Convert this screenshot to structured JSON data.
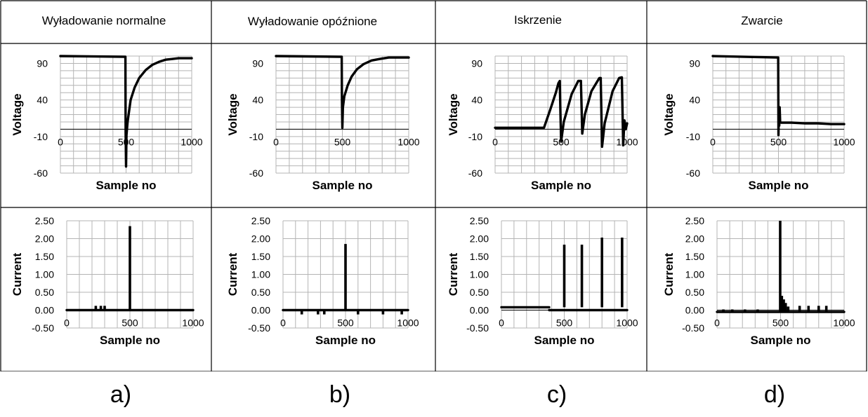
{
  "columns": [
    {
      "header": "Wyładowanie normalne",
      "sublabel": "a)",
      "voltage_chart": {
        "type": "line",
        "ylabel": "Voltage",
        "xlabel": "Sample no",
        "yticks": [
          "90",
          "40",
          "-10",
          "-60"
        ],
        "ytick_values": [
          90,
          40,
          -10,
          -60
        ],
        "xticks": [
          "0",
          "500",
          "1000"
        ],
        "xtick_values": [
          0,
          500,
          1000
        ],
        "ylim": [
          -60,
          100
        ],
        "xlim": [
          0,
          1000
        ],
        "series": [
          {
            "name": "Voltage",
            "x": [
              0,
              495,
              497,
              500,
              503,
              512,
              535,
              565,
              600,
              650,
              700,
              750,
              800,
              850,
              900,
              950,
              1000
            ],
            "y": [
              100,
              99,
              -5,
              -51,
              -8,
              10,
              40,
              57,
              70,
              81,
              88,
              92,
              95,
              96,
              97,
              97,
              97
            ]
          }
        ]
      },
      "current_chart": {
        "type": "line",
        "ylabel": "Current",
        "xlabel": "Sample no",
        "yticks": [
          "2.50",
          "2.00",
          "1.50",
          "1.00",
          "0.50",
          "0.00",
          "-0.50"
        ],
        "ytick_values": [
          2.5,
          2.0,
          1.5,
          1.0,
          0.5,
          0.0,
          -0.5
        ],
        "xticks": [
          "0",
          "500",
          "1000"
        ],
        "xtick_values": [
          0,
          500,
          1000
        ],
        "ylim": [
          -0.5,
          2.5
        ],
        "xlim": [
          0,
          1000
        ],
        "baseline": 0.0,
        "spikes": [
          {
            "x": 500,
            "y": 2.35
          },
          {
            "x": 230,
            "y": 0.12
          },
          {
            "x": 270,
            "y": 0.12
          },
          {
            "x": 300,
            "y": 0.12
          }
        ]
      }
    },
    {
      "header": "Wyładowanie opóźnione",
      "sublabel": "b)",
      "voltage_chart": {
        "type": "line",
        "ylabel": "Voltage",
        "xlabel": "Sample no",
        "yticks": [
          "90",
          "40",
          "-10",
          "-60"
        ],
        "ytick_values": [
          90,
          40,
          -10,
          -60
        ],
        "xticks": [
          "0",
          "500",
          "1000"
        ],
        "xtick_values": [
          0,
          500,
          1000
        ],
        "ylim": [
          -60,
          100
        ],
        "xlim": [
          0,
          1000
        ],
        "series": [
          {
            "name": "Voltage",
            "x": [
              0,
              495,
              497,
              500,
              504,
              515,
              540,
              570,
              610,
              660,
              720,
              780,
              850,
              920,
              1000
            ],
            "y": [
              100,
              99,
              40,
              2,
              30,
              45,
              60,
              72,
              82,
              89,
              94,
              96,
              98,
              98,
              98
            ]
          }
        ]
      },
      "current_chart": {
        "type": "line",
        "ylabel": "Current",
        "xlabel": "Sample no",
        "yticks": [
          "2.50",
          "2.00",
          "1.50",
          "1.00",
          "0.50",
          "0.00",
          "-0.50"
        ],
        "ytick_values": [
          2.5,
          2.0,
          1.5,
          1.0,
          0.5,
          0.0,
          -0.5
        ],
        "xticks": [
          "0",
          "500",
          "1000"
        ],
        "xtick_values": [
          0,
          500,
          1000
        ],
        "ylim": [
          -0.5,
          2.5
        ],
        "xlim": [
          0,
          1000
        ],
        "baseline": 0.0,
        "spikes": [
          {
            "x": 500,
            "y": 1.85
          },
          {
            "x": 150,
            "y": -0.12
          },
          {
            "x": 280,
            "y": -0.12
          },
          {
            "x": 330,
            "y": -0.12
          },
          {
            "x": 600,
            "y": -0.12
          },
          {
            "x": 800,
            "y": -0.12
          },
          {
            "x": 950,
            "y": -0.12
          }
        ]
      }
    },
    {
      "header": "Iskrzenie",
      "sublabel": "c)",
      "voltage_chart": {
        "type": "line",
        "ylabel": "Voltage",
        "xlabel": "Sample no",
        "yticks": [
          "90",
          "40",
          "-10",
          "-60"
        ],
        "ytick_values": [
          90,
          40,
          -10,
          -60
        ],
        "xticks": [
          "0",
          "500",
          "1000"
        ],
        "xtick_values": [
          0,
          500,
          1000
        ],
        "ylim": [
          -60,
          100
        ],
        "xlim": [
          0,
          1000
        ],
        "series": [
          {
            "name": "Voltage",
            "x": [
              0,
              370,
              420,
              460,
              480,
              490,
              495,
              500,
              520,
              580,
              630,
              650,
              660,
              680,
              730,
              790,
              800,
              810,
              830,
              890,
              940,
              960,
              970,
              980,
              990,
              1000
            ],
            "y": [
              2,
              2,
              28,
              50,
              63,
              66,
              20,
              -17,
              10,
              48,
              66,
              66,
              -6,
              20,
              52,
              70,
              70,
              -24,
              8,
              52,
              70,
              71,
              -22,
              12,
              0,
              8
            ]
          }
        ]
      },
      "current_chart": {
        "type": "line",
        "ylabel": "Current",
        "xlabel": "Sample no",
        "yticks": [
          "2.50",
          "2.00",
          "1.50",
          "1.00",
          "0.50",
          "0.00",
          "-0.50"
        ],
        "ytick_values": [
          2.5,
          2.0,
          1.5,
          1.0,
          0.5,
          0.0,
          -0.5
        ],
        "xticks": [
          "0",
          "500",
          "1000"
        ],
        "xtick_values": [
          0,
          500,
          1000
        ],
        "ylim": [
          -0.5,
          2.5
        ],
        "xlim": [
          0,
          1000
        ],
        "baseline": 0.08,
        "baseline_end": 380,
        "spikes": [
          {
            "x": 500,
            "y": 1.83
          },
          {
            "x": 640,
            "y": 1.83
          },
          {
            "x": 800,
            "y": 2.03
          },
          {
            "x": 960,
            "y": 2.03
          }
        ]
      }
    },
    {
      "header": "Zwarcie",
      "sublabel": "d)",
      "voltage_chart": {
        "type": "line",
        "ylabel": "Voltage",
        "xlabel": "Sample no",
        "yticks": [
          "90",
          "40",
          "-10",
          "-60"
        ],
        "ytick_values": [
          90,
          40,
          -10,
          -60
        ],
        "xticks": [
          "0",
          "500",
          "1000"
        ],
        "xtick_values": [
          0,
          500,
          1000
        ],
        "ylim": [
          -60,
          100
        ],
        "xlim": [
          0,
          1000
        ],
        "series": [
          {
            "name": "Voltage",
            "x": [
              0,
              495,
              498,
              500,
              503,
              506,
              509,
              513,
              520,
              600,
              700,
              800,
              900,
              1000
            ],
            "y": [
              100,
              98,
              98,
              -8,
              28,
              5,
              30,
              10,
              9,
              9,
              8,
              8,
              7,
              7
            ]
          }
        ]
      },
      "current_chart": {
        "type": "line",
        "ylabel": "Current",
        "xlabel": "Sample no",
        "yticks": [
          "2.50",
          "2.00",
          "1.50",
          "1.00",
          "0.50",
          "0.00",
          "-0.50"
        ],
        "ytick_values": [
          2.5,
          2.0,
          1.5,
          1.0,
          0.5,
          0.0,
          -0.5
        ],
        "xticks": [
          "0",
          "500",
          "1000"
        ],
        "xtick_values": [
          0,
          500,
          1000
        ],
        "ylim": [
          -0.5,
          2.5
        ],
        "xlim": [
          0,
          1000
        ],
        "baseline": -0.05,
        "spikes": [
          {
            "x": 497,
            "y": 2.5
          },
          {
            "x": 510,
            "y": 0.4
          },
          {
            "x": 525,
            "y": 0.3
          },
          {
            "x": 540,
            "y": 0.2
          },
          {
            "x": 560,
            "y": 0.1
          },
          {
            "x": 50,
            "y": 0.02
          },
          {
            "x": 120,
            "y": 0.02
          },
          {
            "x": 220,
            "y": 0.02
          },
          {
            "x": 320,
            "y": 0.02
          },
          {
            "x": 650,
            "y": 0.12
          },
          {
            "x": 720,
            "y": 0.12
          },
          {
            "x": 800,
            "y": 0.12
          },
          {
            "x": 860,
            "y": 0.12
          }
        ]
      }
    }
  ],
  "chart_data": [
    {
      "type": "line",
      "title": "Wyładowanie normalne – Voltage",
      "xlabel": "Sample no",
      "ylabel": "Voltage",
      "xlim": [
        0,
        1000
      ],
      "ylim": [
        -60,
        100
      ],
      "x": [
        0,
        495,
        500,
        503,
        535,
        600,
        700,
        800,
        900,
        1000
      ],
      "values": [
        100,
        99,
        -51,
        -8,
        40,
        70,
        88,
        95,
        97,
        97
      ]
    },
    {
      "type": "line",
      "title": "Wyładowanie normalne – Current",
      "xlabel": "Sample no",
      "ylabel": "Current",
      "xlim": [
        0,
        1000
      ],
      "ylim": [
        -0.5,
        2.5
      ],
      "x": [
        0,
        230,
        500,
        1000
      ],
      "values": [
        0.0,
        0.12,
        2.35,
        0.0
      ]
    },
    {
      "type": "line",
      "title": "Wyładowanie opóźnione – Voltage",
      "xlabel": "Sample no",
      "ylabel": "Voltage",
      "xlim": [
        0,
        1000
      ],
      "ylim": [
        -60,
        100
      ],
      "x": [
        0,
        495,
        500,
        515,
        570,
        660,
        780,
        1000
      ],
      "values": [
        100,
        99,
        2,
        45,
        72,
        89,
        96,
        98
      ]
    },
    {
      "type": "line",
      "title": "Wyładowanie opóźnione – Current",
      "xlabel": "Sample no",
      "ylabel": "Current",
      "xlim": [
        0,
        1000
      ],
      "ylim": [
        -0.5,
        2.5
      ],
      "x": [
        0,
        150,
        500,
        1000
      ],
      "values": [
        0.0,
        -0.12,
        1.85,
        0.0
      ]
    },
    {
      "type": "line",
      "title": "Iskrzenie – Voltage",
      "xlabel": "Sample no",
      "ylabel": "Voltage",
      "xlim": [
        0,
        1000
      ],
      "ylim": [
        -60,
        100
      ],
      "x": [
        0,
        370,
        490,
        500,
        650,
        660,
        800,
        810,
        960,
        970,
        1000
      ],
      "values": [
        2,
        2,
        66,
        -17,
        66,
        -6,
        70,
        -24,
        71,
        -22,
        8
      ]
    },
    {
      "type": "line",
      "title": "Iskrzenie – Current",
      "xlabel": "Sample no",
      "ylabel": "Current",
      "xlim": [
        0,
        1000
      ],
      "ylim": [
        -0.5,
        2.5
      ],
      "x": [
        0,
        500,
        640,
        800,
        960
      ],
      "values": [
        0.08,
        1.83,
        1.83,
        2.03,
        2.03
      ]
    },
    {
      "type": "line",
      "title": "Zwarcie – Voltage",
      "xlabel": "Sample no",
      "ylabel": "Voltage",
      "xlim": [
        0,
        1000
      ],
      "ylim": [
        -60,
        100
      ],
      "x": [
        0,
        495,
        500,
        506,
        520,
        1000
      ],
      "values": [
        100,
        98,
        -8,
        5,
        9,
        7
      ]
    },
    {
      "type": "line",
      "title": "Zwarcie – Current",
      "xlabel": "Sample no",
      "ylabel": "Current",
      "xlim": [
        0,
        1000
      ],
      "ylim": [
        -0.5,
        2.5
      ],
      "x": [
        0,
        497,
        510,
        1000
      ],
      "values": [
        -0.05,
        2.5,
        0.4,
        -0.05
      ]
    }
  ]
}
